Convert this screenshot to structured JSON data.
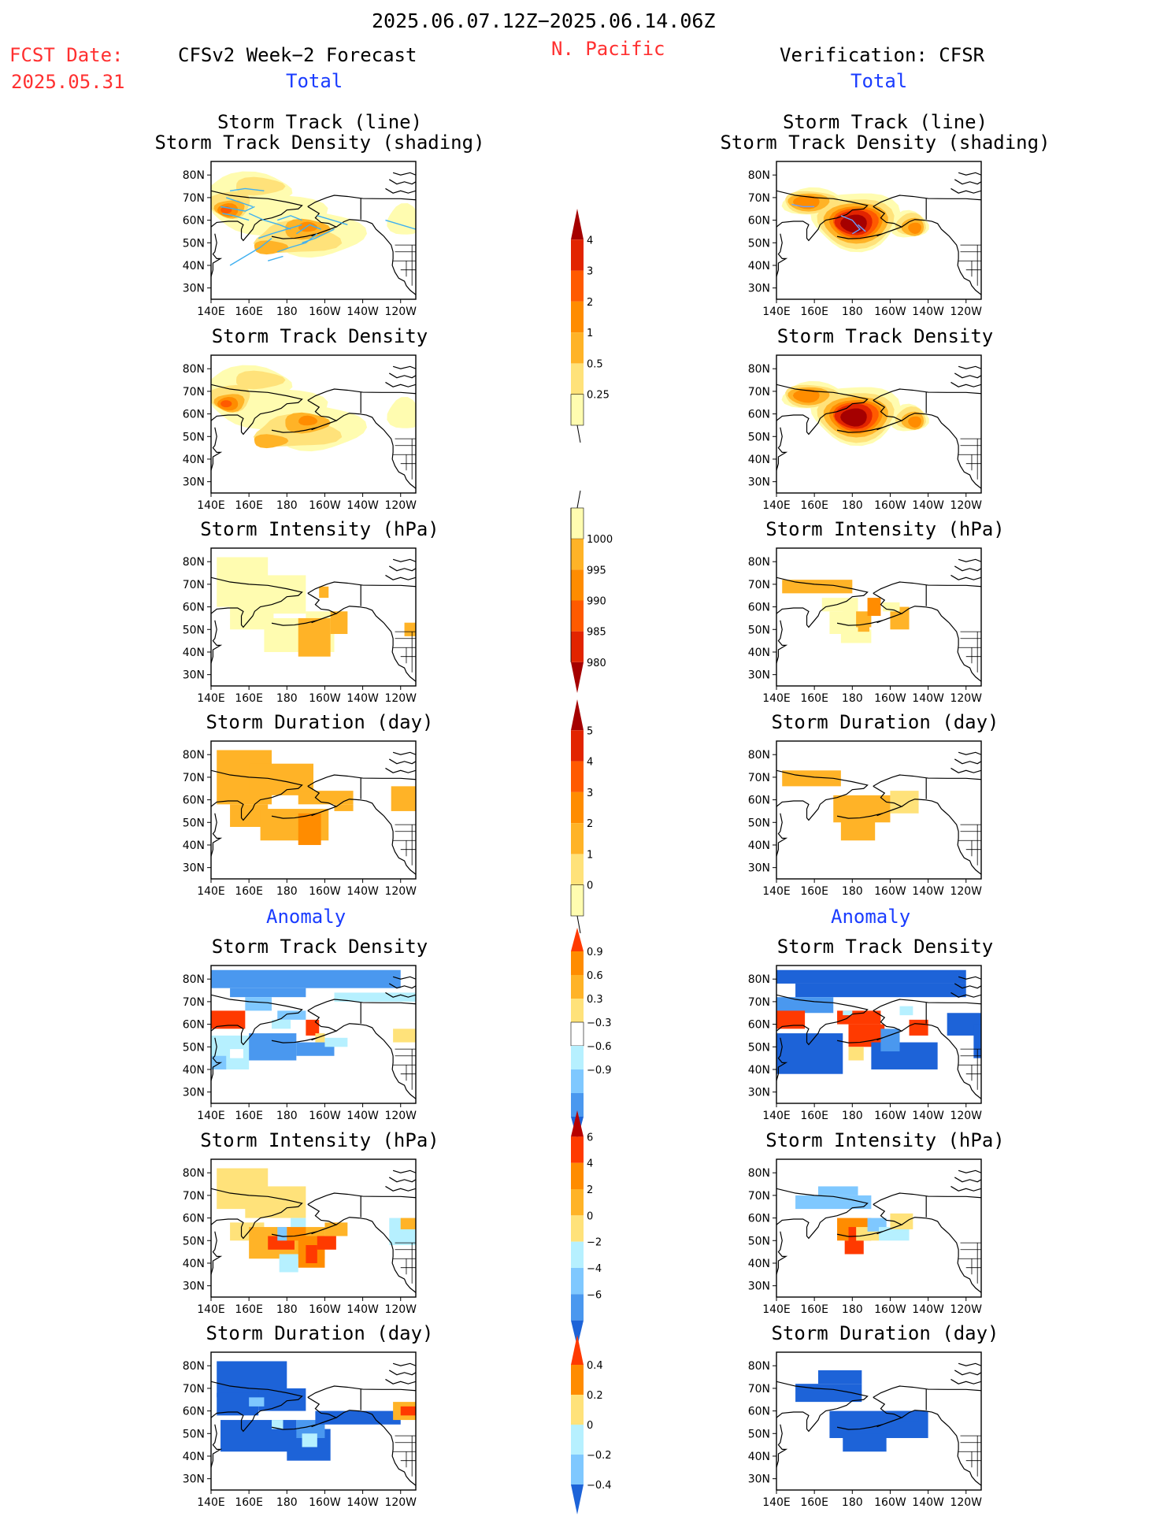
{
  "header": {
    "date_range": "2025.06.07.12Z−2025.06.14.06Z",
    "fcst_label": "FCST Date:",
    "fcst_date": "2025.05.31",
    "left_title": "CFSv2 Week−2 Forecast",
    "region": "N. Pacific",
    "right_title": "Verification: CFSR",
    "total_label": "Total",
    "anomaly_label": "Anomaly"
  },
  "axes": {
    "lon_ticks": [
      "140E",
      "160E",
      "180",
      "160W",
      "140W",
      "120W"
    ],
    "lat_ticks": [
      "80N",
      "70N",
      "60N",
      "50N",
      "40N",
      "30N"
    ]
  },
  "colors": {
    "total_scale": [
      "#fffcb0",
      "#ffe27a",
      "#ffb327",
      "#ff8c00",
      "#ff5a00",
      "#e22400",
      "#a50000"
    ],
    "anom_pos": [
      "#ffe27a",
      "#ffb327",
      "#ff8c00",
      "#ff3a00"
    ],
    "anom_neg": [
      "#b6f0ff",
      "#7fc8ff",
      "#4a98ef",
      "#1d63d8"
    ],
    "track_line": "#3fb0f0",
    "track_line_obs": "#6aa0ff"
  },
  "panels_total": [
    {
      "title_lines": [
        "Storm Track (line)",
        "Storm Track Density (shading)"
      ],
      "hasTracks": true
    },
    {
      "title_lines": [
        "Storm Track Density"
      ],
      "hasTracks": false
    },
    {
      "title_lines": [
        "Storm Intensity (hPa)"
      ],
      "hasTracks": false
    },
    {
      "title_lines": [
        "Storm Duration (day)"
      ],
      "hasTracks": false
    }
  ],
  "panels_anom": [
    {
      "title_lines": [
        "Storm Track Density"
      ]
    },
    {
      "title_lines": [
        "Storm Intensity (hPa)"
      ]
    },
    {
      "title_lines": [
        "Storm Duration (day)"
      ]
    }
  ],
  "colorbars": [
    {
      "name": "density",
      "labels": [
        "4",
        "3",
        "2",
        "1",
        "0.5",
        "0.25"
      ],
      "colors": [
        "#a50000",
        "#e22400",
        "#ff5a00",
        "#ff8c00",
        "#ffb327",
        "#ffe27a",
        "#fffcb0"
      ],
      "tail": "bottom-open"
    },
    {
      "name": "intensity",
      "labels": [
        "1000",
        "995",
        "990",
        "985",
        "980"
      ],
      "colors": [
        "#fffcb0",
        "#ffb327",
        "#ff8c00",
        "#ff5a00",
        "#e22400",
        "#a50000"
      ],
      "tail": "top-open"
    },
    {
      "name": "duration",
      "labels": [
        "5",
        "4",
        "3",
        "2",
        "1",
        "0"
      ],
      "colors": [
        "#a50000",
        "#e22400",
        "#ff5a00",
        "#ff8c00",
        "#ffb327",
        "#ffe27a",
        "#fffcb0"
      ],
      "tail": "bottom-open"
    },
    {
      "name": "anom-density",
      "labels": [
        "0.9",
        "0.6",
        "0.3",
        "−0.3",
        "−0.6",
        "−0.9"
      ],
      "colors": [
        "#ff3a00",
        "#ff8c00",
        "#ffb327",
        "#ffe27a",
        "#ffffff",
        "#b6f0ff",
        "#7fc8ff",
        "#4a98ef",
        "#1d63d8"
      ]
    },
    {
      "name": "anom-intensity",
      "labels": [
        "6",
        "4",
        "2",
        "0",
        "−2",
        "−4",
        "−6"
      ],
      "colors": [
        "#b80000",
        "#ff3a00",
        "#ff8c00",
        "#ffb327",
        "#ffe27a",
        "#b6f0ff",
        "#7fc8ff",
        "#4a98ef",
        "#1d63d8"
      ]
    },
    {
      "name": "anom-duration",
      "labels": [
        "0.4",
        "0.2",
        "0",
        "−0.2",
        "−0.4"
      ],
      "colors": [
        "#ff3a00",
        "#ff8c00",
        "#ffe27a",
        "#b6f0ff",
        "#7fc8ff",
        "#1d63d8"
      ]
    }
  ]
}
